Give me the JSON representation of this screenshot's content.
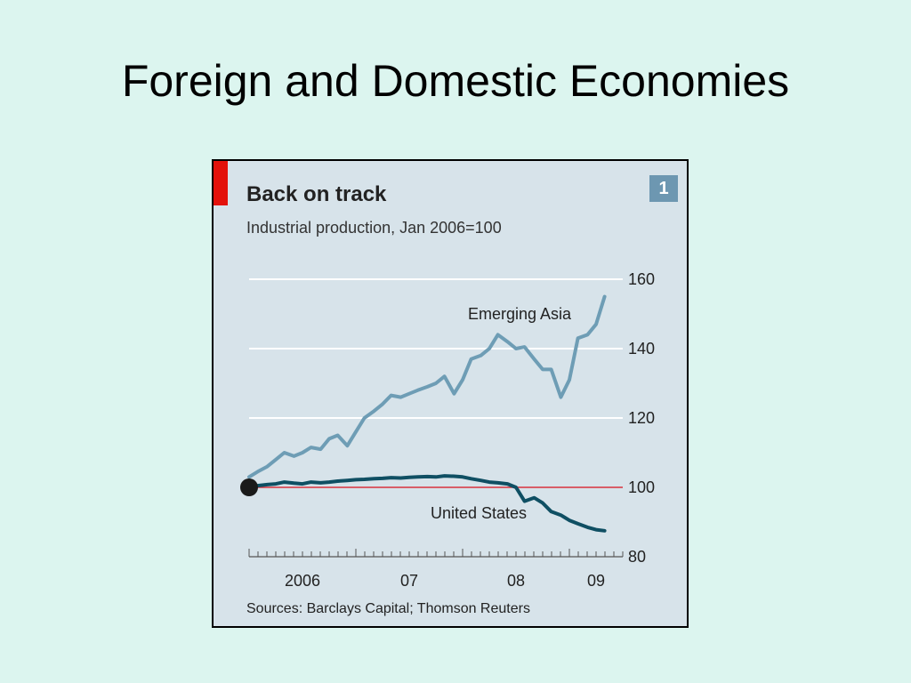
{
  "slide": {
    "title": "Foreign and Domestic Economies"
  },
  "colors": {
    "background": "#dcf5ef",
    "chart_background": "#d7e3ea",
    "accent_red": "#e3120b",
    "emerging_asia": "#6e9db5",
    "united_states": "#0f4f63",
    "baseline": "#d8323c",
    "badge": "#6d97b1"
  },
  "chart_data": {
    "type": "line",
    "title": "Back on track",
    "subtitle": "Industrial production, Jan 2006=100",
    "badge": "1",
    "source": "Sources: Barclays Capital; Thomson Reuters",
    "ylim": [
      80,
      160
    ],
    "yticks": [
      "160",
      "140",
      "120",
      "100",
      "80"
    ],
    "ytick_values": [
      160,
      140,
      120,
      100,
      80
    ],
    "xlim": [
      2006.0,
      2009.5
    ],
    "xticks": [
      {
        "label": "2006",
        "x": 2006.5
      },
      {
        "label": "07",
        "x": 2007.5
      },
      {
        "label": "08",
        "x": 2008.5
      },
      {
        "label": "09",
        "x": 2009.25
      }
    ],
    "grid": true,
    "baseline": 100,
    "start_marker": {
      "x": 2006.0,
      "y": 100
    },
    "series": [
      {
        "name": "Emerging Asia",
        "color": "#6e9db5",
        "points": [
          [
            2006.0,
            103
          ],
          [
            2006.08,
            104.5
          ],
          [
            2006.17,
            106
          ],
          [
            2006.25,
            108
          ],
          [
            2006.33,
            110
          ],
          [
            2006.42,
            109
          ],
          [
            2006.5,
            110
          ],
          [
            2006.58,
            111.5
          ],
          [
            2006.67,
            111
          ],
          [
            2006.75,
            114
          ],
          [
            2006.83,
            115
          ],
          [
            2006.92,
            112
          ],
          [
            2007.0,
            116
          ],
          [
            2007.08,
            120
          ],
          [
            2007.17,
            122
          ],
          [
            2007.25,
            124
          ],
          [
            2007.33,
            126.5
          ],
          [
            2007.42,
            126
          ],
          [
            2007.5,
            127
          ],
          [
            2007.58,
            128
          ],
          [
            2007.67,
            129
          ],
          [
            2007.75,
            130
          ],
          [
            2007.83,
            132
          ],
          [
            2007.92,
            127
          ],
          [
            2008.0,
            131
          ],
          [
            2008.08,
            137
          ],
          [
            2008.17,
            138
          ],
          [
            2008.25,
            140
          ],
          [
            2008.33,
            144
          ],
          [
            2008.42,
            142
          ],
          [
            2008.5,
            140
          ],
          [
            2008.58,
            140.5
          ],
          [
            2008.67,
            137
          ],
          [
            2008.75,
            134
          ],
          [
            2008.83,
            134
          ],
          [
            2008.92,
            126
          ],
          [
            2009.0,
            131
          ],
          [
            2009.08,
            143
          ],
          [
            2009.17,
            144
          ],
          [
            2009.25,
            147
          ],
          [
            2009.33,
            155
          ]
        ]
      },
      {
        "name": "United States",
        "color": "#0f4f63",
        "points": [
          [
            2006.0,
            100
          ],
          [
            2006.08,
            100.5
          ],
          [
            2006.17,
            100.8
          ],
          [
            2006.25,
            101
          ],
          [
            2006.33,
            101.5
          ],
          [
            2006.42,
            101.2
          ],
          [
            2006.5,
            101
          ],
          [
            2006.58,
            101.5
          ],
          [
            2006.67,
            101.3
          ],
          [
            2006.75,
            101.5
          ],
          [
            2006.83,
            101.8
          ],
          [
            2006.92,
            102
          ],
          [
            2007.0,
            102.2
          ],
          [
            2007.08,
            102.3
          ],
          [
            2007.17,
            102.5
          ],
          [
            2007.25,
            102.6
          ],
          [
            2007.33,
            102.8
          ],
          [
            2007.42,
            102.7
          ],
          [
            2007.5,
            102.9
          ],
          [
            2007.58,
            103
          ],
          [
            2007.67,
            103.1
          ],
          [
            2007.75,
            103
          ],
          [
            2007.83,
            103.3
          ],
          [
            2007.92,
            103.2
          ],
          [
            2008.0,
            103
          ],
          [
            2008.08,
            102.5
          ],
          [
            2008.17,
            102
          ],
          [
            2008.25,
            101.5
          ],
          [
            2008.33,
            101.3
          ],
          [
            2008.42,
            101
          ],
          [
            2008.5,
            100
          ],
          [
            2008.58,
            96
          ],
          [
            2008.67,
            97
          ],
          [
            2008.75,
            95.5
          ],
          [
            2008.83,
            93
          ],
          [
            2008.92,
            92
          ],
          [
            2009.0,
            90.5
          ],
          [
            2009.08,
            89.5
          ],
          [
            2009.17,
            88.5
          ],
          [
            2009.25,
            87.8
          ],
          [
            2009.33,
            87.5
          ]
        ]
      }
    ]
  }
}
